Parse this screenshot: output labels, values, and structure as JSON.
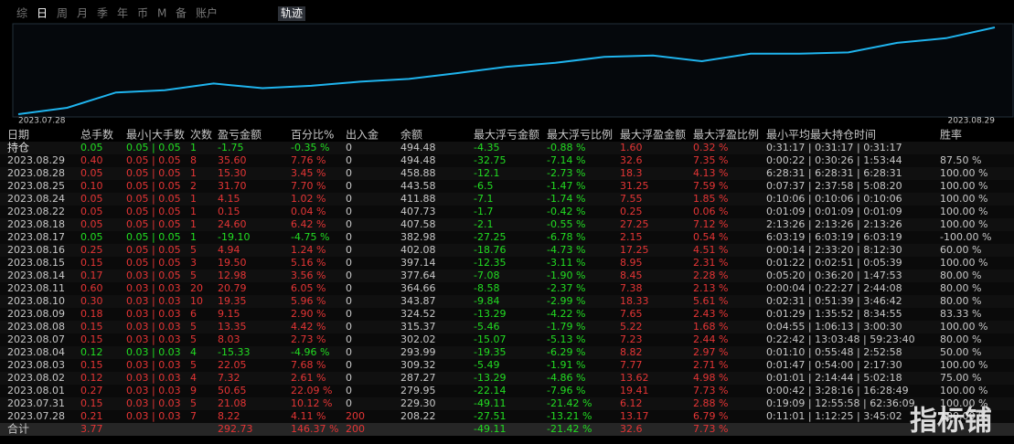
{
  "tabs": [
    "综",
    "日",
    "周",
    "月",
    "季",
    "年",
    "币",
    "M",
    "备",
    "账户"
  ],
  "active_tab": "轨迹",
  "chart": {
    "start_label": "2023.07.28",
    "end_label": "2023.08.29",
    "line_color": "#1fb4ee"
  },
  "table": {
    "header": [
      "日期",
      "总手数",
      "最小|大手数",
      "次数",
      "盈亏金额",
      "百分比%",
      "出入金",
      "余额",
      "最大浮亏金额",
      "最大浮亏比例",
      "最大浮盈金额",
      "最大浮盈比例",
      "最小平均最大持仓时间",
      "胜率"
    ],
    "rows": [
      [
        "持仓",
        "0.05",
        "0.05 | 0.05",
        "1",
        "-1.75",
        "-0.35 %",
        "0",
        "494.48",
        "-4.35",
        "-0.88 %",
        "1.60",
        "0.32 %",
        "0:31:17 | 0:31:17 | 0:31:17"
      ],
      [
        "2023.08.29",
        "0.40",
        "0.05 | 0.05",
        "8",
        "35.60",
        "7.76 %",
        "0",
        "494.48",
        "-32.75",
        "-7.14 %",
        "32.6",
        "7.35 %",
        "0:00:22 | 0:30:26 | 1:53:44",
        "87.50 %"
      ],
      [
        "2023.08.28",
        "0.05",
        "0.05 | 0.05",
        "1",
        "15.30",
        "3.45 %",
        "0",
        "458.88",
        "-12.1",
        "-2.73 %",
        "18.3",
        "4.13 %",
        "6:28:31 | 6:28:31 | 6:28:31",
        "100.00 %"
      ],
      [
        "2023.08.25",
        "0.10",
        "0.05 | 0.05",
        "2",
        "31.70",
        "7.70 %",
        "0",
        "443.58",
        "-6.5",
        "-1.47 %",
        "31.25",
        "7.59 %",
        "0:07:37 | 2:37:58 | 5:08:20",
        "100.00 %"
      ],
      [
        "2023.08.24",
        "0.05",
        "0.05 | 0.05",
        "1",
        "4.15",
        "1.02 %",
        "0",
        "411.88",
        "-7.1",
        "-1.74 %",
        "7.55",
        "1.85 %",
        "0:10:06 | 0:10:06 | 0:10:06",
        "100.00 %"
      ],
      [
        "2023.08.22",
        "0.05",
        "0.05 | 0.05",
        "1",
        "0.15",
        "0.04 %",
        "0",
        "407.73",
        "-1.7",
        "-0.42 %",
        "0.25",
        "0.06 %",
        "0:01:09 | 0:01:09 | 0:01:09",
        "100.00 %"
      ],
      [
        "2023.08.18",
        "0.05",
        "0.05 | 0.05",
        "1",
        "24.60",
        "6.42 %",
        "0",
        "407.58",
        "-2.1",
        "-0.55 %",
        "27.25",
        "7.12 %",
        "2:13:26 | 2:13:26 | 2:13:26",
        "100.00 %"
      ],
      [
        "2023.08.17",
        "0.05",
        "0.05 | 0.05",
        "1",
        "-19.10",
        "-4.75 %",
        "0",
        "382.98",
        "-27.25",
        "-6.78 %",
        "2.15",
        "0.54 %",
        "6:03:19 | 6:03:19 | 6:03:19",
        "-100.00 %"
      ],
      [
        "2023.08.16",
        "0.25",
        "0.05 | 0.05",
        "5",
        "4.94",
        "1.24 %",
        "0",
        "402.08",
        "-18.76",
        "-4.73 %",
        "17.25",
        "4.51 %",
        "0:00:14 | 2:33:20 | 8:12:30",
        "60.00 %"
      ],
      [
        "2023.08.15",
        "0.15",
        "0.05 | 0.05",
        "3",
        "19.50",
        "5.16 %",
        "0",
        "397.14",
        "-12.35",
        "-3.11 %",
        "8.95",
        "2.31 %",
        "0:01:22 | 0:02:51 | 0:05:39",
        "100.00 %"
      ],
      [
        "2023.08.14",
        "0.17",
        "0.03 | 0.05",
        "5",
        "12.98",
        "3.56 %",
        "0",
        "377.64",
        "-7.08",
        "-1.90 %",
        "8.45",
        "2.28 %",
        "0:05:20 | 0:36:20 | 1:47:53",
        "80.00 %"
      ],
      [
        "2023.08.11",
        "0.60",
        "0.03 | 0.03",
        "20",
        "20.79",
        "6.05 %",
        "0",
        "364.66",
        "-8.58",
        "-2.37 %",
        "7.38",
        "2.13 %",
        "0:00:04 | 0:22:27 | 2:44:08",
        "80.00 %"
      ],
      [
        "2023.08.10",
        "0.30",
        "0.03 | 0.03",
        "10",
        "19.35",
        "5.96 %",
        "0",
        "343.87",
        "-9.84",
        "-2.99 %",
        "18.33",
        "5.61 %",
        "0:02:31 | 0:51:39 | 3:46:42",
        "80.00 %"
      ],
      [
        "2023.08.09",
        "0.18",
        "0.03 | 0.03",
        "6",
        "9.15",
        "2.90 %",
        "0",
        "324.52",
        "-13.29",
        "-4.22 %",
        "7.65",
        "2.43 %",
        "0:01:29 | 1:35:52 | 8:34:55",
        "83.33 %"
      ],
      [
        "2023.08.08",
        "0.15",
        "0.03 | 0.03",
        "5",
        "13.35",
        "4.42 %",
        "0",
        "315.37",
        "-5.46",
        "-1.79 %",
        "5.22",
        "1.68 %",
        "0:04:55 | 1:06:13 | 3:00:30",
        "100.00 %"
      ],
      [
        "2023.08.07",
        "0.15",
        "0.03 | 0.03",
        "5",
        "8.03",
        "2.73 %",
        "0",
        "302.02",
        "-15.07",
        "-5.13 %",
        "7.23",
        "2.44 %",
        "0:22:42 | 13:03:48 | 59:23:40",
        "80.00 %"
      ],
      [
        "2023.08.04",
        "0.12",
        "0.03 | 0.03",
        "4",
        "-15.33",
        "-4.96 %",
        "0",
        "293.99",
        "-19.35",
        "-6.29 %",
        "8.82",
        "2.97 %",
        "0:01:10 | 0:55:48 | 2:52:58",
        "50.00 %"
      ],
      [
        "2023.08.03",
        "0.15",
        "0.03 | 0.03",
        "5",
        "22.05",
        "7.68 %",
        "0",
        "309.32",
        "-5.49",
        "-1.91 %",
        "7.77",
        "2.71 %",
        "0:01:47 | 0:54:00 | 2:17:30",
        "100.00 %"
      ],
      [
        "2023.08.02",
        "0.12",
        "0.03 | 0.03",
        "4",
        "7.32",
        "2.61 %",
        "0",
        "287.27",
        "-13.29",
        "-4.86 %",
        "13.62",
        "4.98 %",
        "0:01:01 | 2:14:44 | 5:02:18",
        "75.00 %"
      ],
      [
        "2023.08.01",
        "0.27",
        "0.03 | 0.03",
        "9",
        "50.65",
        "22.09 %",
        "0",
        "279.95",
        "-22.14",
        "-7.96 %",
        "19.41",
        "7.73 %",
        "0:00:42 | 3:28:16 | 16:28:49",
        "100.00 %"
      ],
      [
        "2023.07.31",
        "0.15",
        "0.03 | 0.03",
        "5",
        "21.08",
        "10.12 %",
        "0",
        "229.30",
        "-49.11",
        "-21.42 %",
        "6.12",
        "2.88 %",
        "0:19:09 | 12:55:58 | 62:36:09",
        "100.00 %"
      ],
      [
        "2023.07.28",
        "0.21",
        "0.03 | 0.03",
        "7",
        "8.22",
        "4.11 %",
        "200",
        "208.22",
        "-27.51",
        "-13.21 %",
        "13.17",
        "6.79 %",
        "0:11:01 | 1:12:25 | 3:45:02",
        "100.00 %"
      ],
      [
        "合计",
        "3.77",
        null,
        null,
        "292.73",
        "146.37 %",
        "200",
        null,
        "-49.11",
        "-21.42 %",
        "32.6",
        "7.73 %"
      ]
    ]
  },
  "watermark": "指标铺"
}
